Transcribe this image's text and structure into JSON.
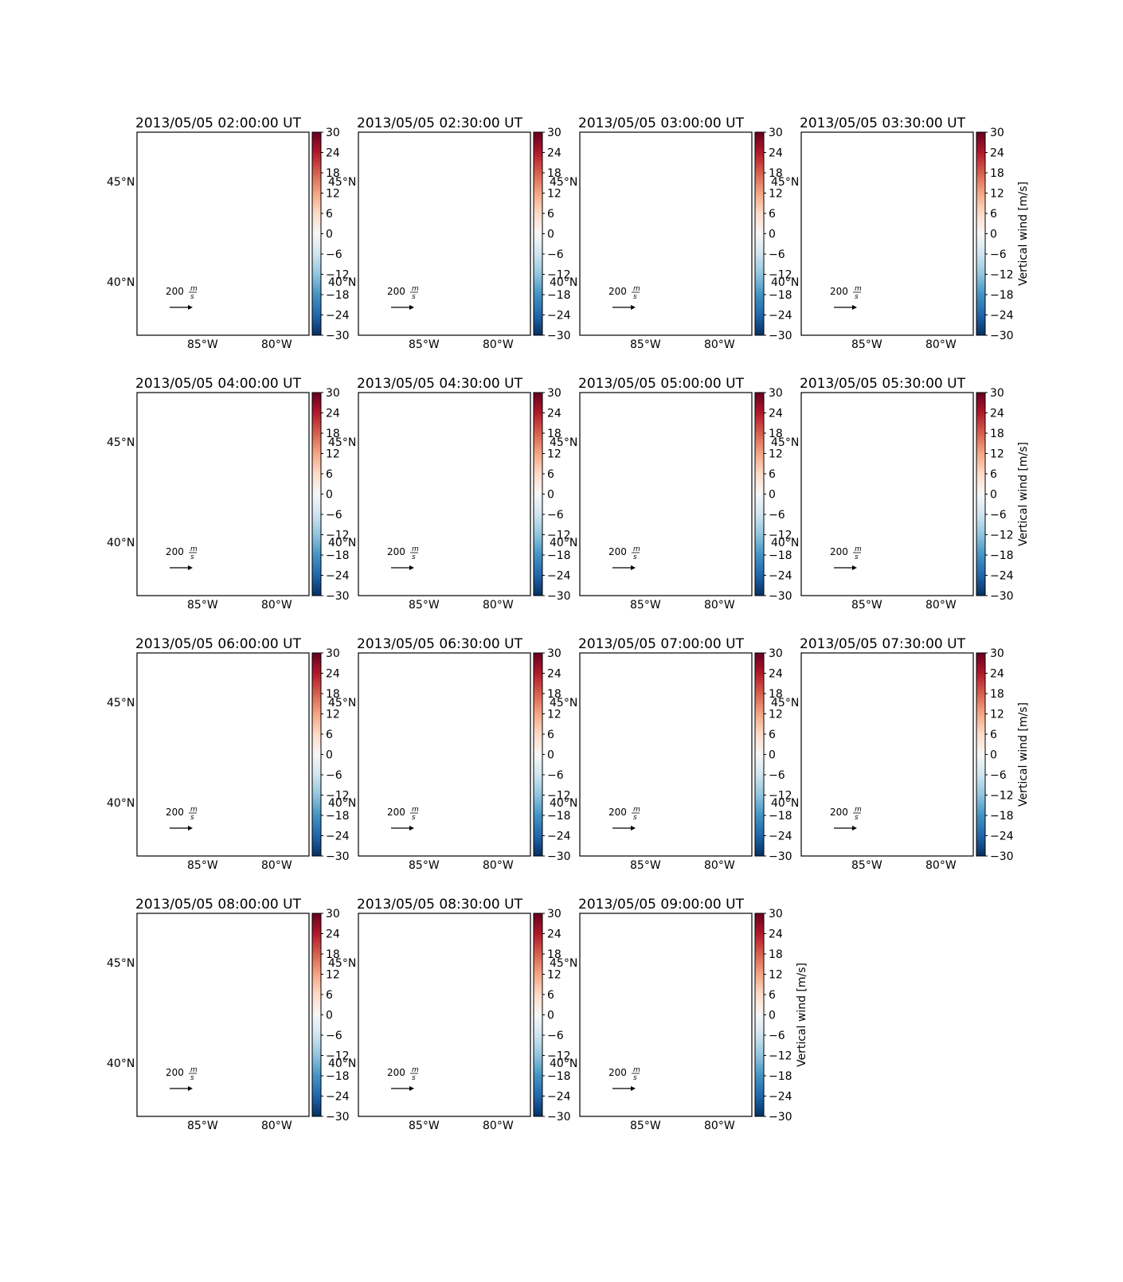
{
  "figure": {
    "panels": [
      {
        "title": "2013/05/05 02:00:00 UT"
      },
      {
        "title": "2013/05/05 02:30:00 UT"
      },
      {
        "title": "2013/05/05 03:00:00 UT"
      },
      {
        "title": "2013/05/05 03:30:00 UT"
      },
      {
        "title": "2013/05/05 04:00:00 UT"
      },
      {
        "title": "2013/05/05 04:30:00 UT"
      },
      {
        "title": "2013/05/05 05:00:00 UT"
      },
      {
        "title": "2013/05/05 05:30:00 UT"
      },
      {
        "title": "2013/05/05 06:00:00 UT"
      },
      {
        "title": "2013/05/05 06:30:00 UT"
      },
      {
        "title": "2013/05/05 07:00:00 UT"
      },
      {
        "title": "2013/05/05 07:30:00 UT"
      },
      {
        "title": "2013/05/05 08:00:00 UT"
      },
      {
        "title": "2013/05/05 08:30:00 UT"
      },
      {
        "title": "2013/05/05 09:00:00 UT"
      }
    ],
    "lat_labels": [
      "45°N",
      "40°N"
    ],
    "lon_labels": [
      "85°W",
      "80°W"
    ],
    "quiver_key": {
      "magnitude": "200",
      "unit_num": "m",
      "unit_den": "s"
    },
    "colorbar": {
      "label": "Vertical wind [m/s]",
      "ticks": [
        "30",
        "24",
        "18",
        "12",
        "6",
        "0",
        "−6",
        "−12",
        "−18",
        "−24",
        "−30"
      ],
      "cmap": "RdBu_r",
      "range": [
        -30,
        30
      ],
      "colors": [
        "#67001f",
        "#b2182b",
        "#d6604d",
        "#f4a582",
        "#fddbc7",
        "#f7f7f7",
        "#d1e5f0",
        "#92c5de",
        "#4393c3",
        "#2166ac",
        "#053061"
      ]
    },
    "colorbar_label_panels": [
      3,
      7,
      11,
      14
    ]
  }
}
